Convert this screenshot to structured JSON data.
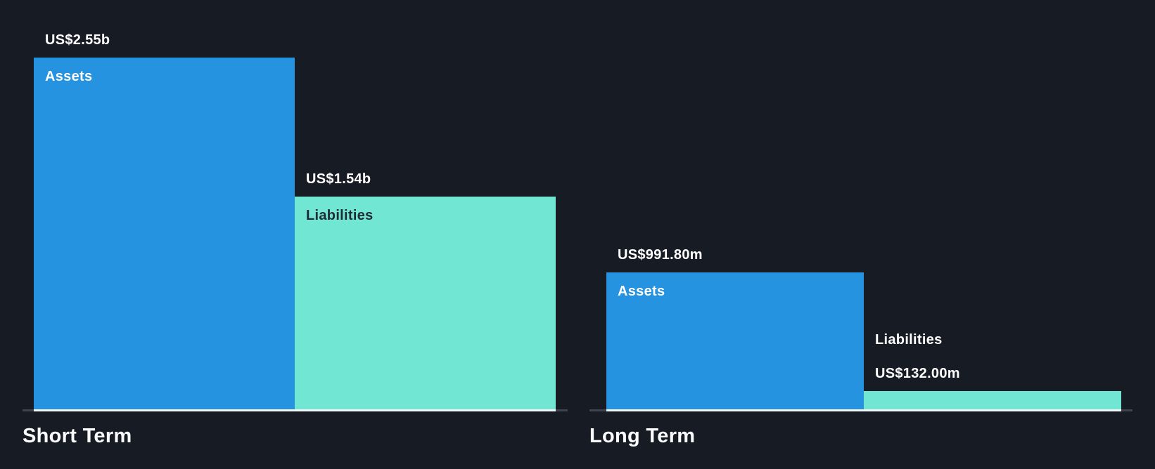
{
  "chart_data": {
    "type": "bar",
    "title": "",
    "legend_position": "none",
    "grid": false,
    "value_scale": {
      "max_value": 2550000000,
      "shared_across_groups": true
    },
    "colors": {
      "background": "#161B24",
      "assets": "#2593DF",
      "liabilities": "#71E6D2",
      "label_light": "#FFFFFF",
      "label_dark": "#202B36",
      "axis_under_bars": "#F5F6F7",
      "axis_extension": "#3D444E",
      "group_label": "#FAFBFC"
    },
    "groups": [
      {
        "label": "Short Term",
        "bars": [
          {
            "name": "Assets",
            "series": "assets",
            "value": 2550000000,
            "value_label": "US$2.55b",
            "name_label_position": "inside",
            "name_label_tone": "light"
          },
          {
            "name": "Liabilities",
            "series": "liabilities",
            "value": 1540000000,
            "value_label": "US$1.54b",
            "name_label_position": "inside",
            "name_label_tone": "dark"
          }
        ]
      },
      {
        "label": "Long Term",
        "bars": [
          {
            "name": "Assets",
            "series": "assets",
            "value": 991800000,
            "value_label": "US$991.80m",
            "name_label_position": "inside",
            "name_label_tone": "light"
          },
          {
            "name": "Liabilities",
            "series": "liabilities",
            "value": 132000000,
            "value_label": "US$132.00m",
            "name_label_position": "above",
            "name_label_tone": "light"
          }
        ]
      }
    ]
  }
}
